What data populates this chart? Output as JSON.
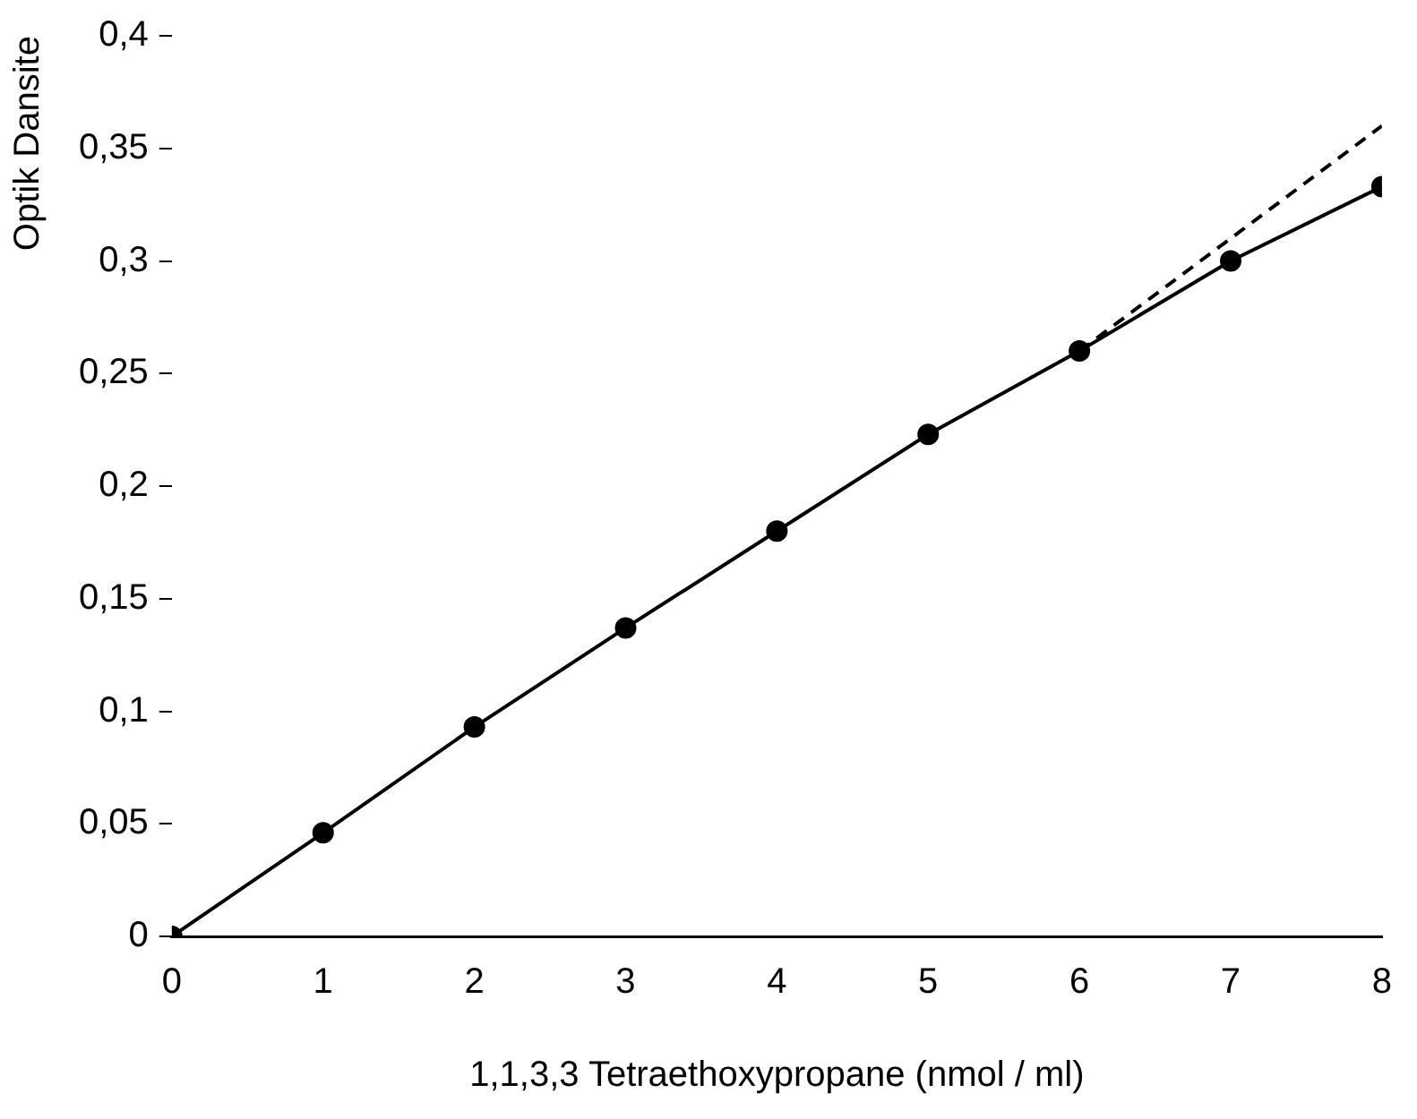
{
  "chart_data": {
    "type": "line",
    "xlabel": "1,1,3,3 Tetraethoxypropane (nmol / ml)",
    "ylabel": "Optik Dansite",
    "x": [
      0,
      1,
      2,
      3,
      4,
      5,
      6,
      7,
      8
    ],
    "series": [
      {
        "color": "#000000",
        "values": [
          0,
          0.046,
          0.093,
          0.137,
          0.18,
          0.223,
          0.26,
          0.3,
          0.333
        ],
        "marker": "circle",
        "line_style": "solid"
      },
      {
        "type": "line",
        "color": "#000000",
        "x": [
          6,
          8
        ],
        "values": [
          0.26,
          0.36
        ],
        "marker": "none",
        "line_style": "dashed"
      }
    ],
    "xlim": [
      0,
      8
    ],
    "xticks": [
      0,
      1,
      2,
      3,
      4,
      5,
      6,
      7,
      8
    ],
    "ylim": [
      0,
      0.4
    ],
    "yticks": [
      0,
      {
        "value": 0.05,
        "label": "0,05"
      },
      {
        "value": 0.1,
        "label": "0,1"
      },
      {
        "value": 0.15,
        "label": "0,15"
      },
      {
        "value": 0.2,
        "label": "0,2"
      },
      {
        "value": 0.25,
        "label": "0,25"
      },
      {
        "value": 0.3,
        "label": "0,3"
      },
      {
        "value": 0.35,
        "label": "0,35"
      },
      {
        "value": 0.4,
        "label": "0,4"
      }
    ],
    "grid": false,
    "legend": false
  }
}
